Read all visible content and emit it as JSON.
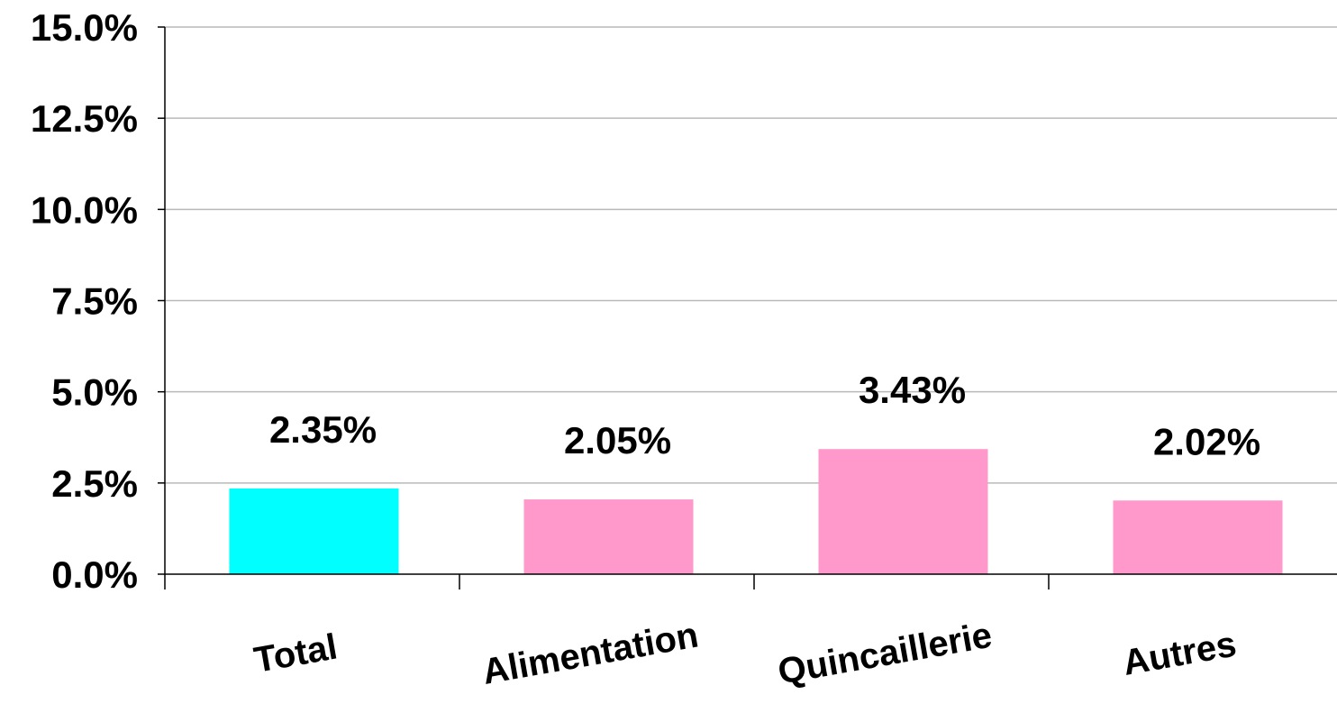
{
  "chart_data": {
    "type": "bar",
    "title": "",
    "xlabel": "",
    "ylabel": "",
    "categories": [
      "Total",
      "Alimentation",
      "Quincaillerie",
      "Autres"
    ],
    "values": [
      2.35,
      2.05,
      3.43,
      2.02
    ],
    "data_labels": [
      "2.35%",
      "2.05%",
      "3.43%",
      "2.02%"
    ],
    "bar_colors": [
      "#00ffff",
      "#ff99cc",
      "#ff99cc",
      "#ff99cc"
    ],
    "ylim": [
      0,
      15
    ],
    "yticks": [
      0,
      2.5,
      5,
      7.5,
      10,
      12.5,
      15
    ],
    "ytick_labels": [
      "0.0%",
      "2.5%",
      "5.0%",
      "7.5%",
      "10.0%",
      "12.5%",
      "15.0%"
    ],
    "grid": true,
    "legend": "none"
  }
}
